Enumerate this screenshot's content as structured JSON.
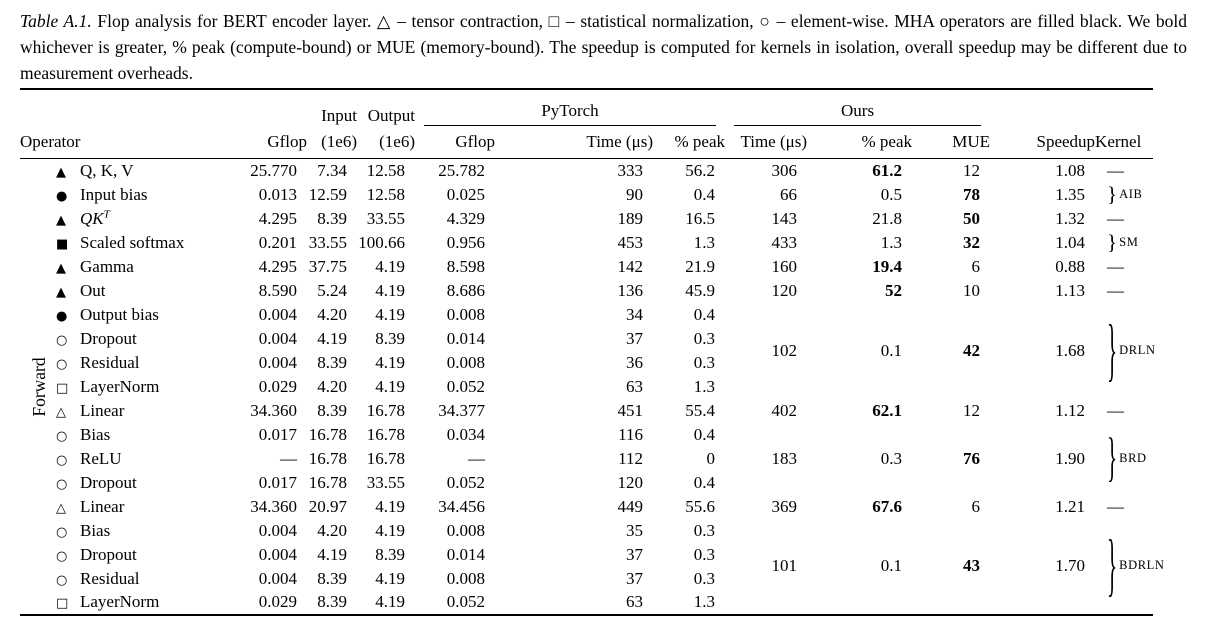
{
  "caption": {
    "label": "Table A.1.",
    "text": "Flop analysis for BERT encoder layer.  △ – tensor contraction, □ – statistical normalization, ○ – element-wise.  MHA operators are filled black.  We bold whichever is greater, % peak (compute-bound) or MUE (memory-bound).  The speedup is computed for kernels in isolation, overall speedup may be different due to measurement overheads."
  },
  "table": {
    "side_label": "Forward",
    "group_headers": {
      "input": "Input",
      "output": "Output",
      "pytorch": "PyTorch",
      "ours": "Ours"
    },
    "column_headers": {
      "operator": "Operator",
      "gflop": "Gflop",
      "input_1e6": "(1e6)",
      "output_1e6": "(1e6)",
      "pt_gflop": "Gflop",
      "pt_time": "Time (μs)",
      "pt_peak": "% peak",
      "ours_time": "Time (μs)",
      "ours_peak": "% peak",
      "mue": "MUE",
      "speedup": "Speedup",
      "kernel": "Kernel"
    },
    "icon_glyphs": {
      "triangle-filled": "▲",
      "circle-filled": "●",
      "square-filled": "■",
      "circle-open": "○",
      "square-open": "□",
      "triangle-open": "△"
    },
    "rows": [
      {
        "icon": "triangle-filled",
        "operator": "Q, K, V",
        "gflop": "25.770",
        "input": "7.34",
        "output": "12.58",
        "pt_gflop": "25.782",
        "pt_time": "333",
        "pt_peak": "56.2",
        "ours": {
          "span": 1,
          "time": "306",
          "peak": "61.2",
          "peak_bold": true,
          "mue": "12",
          "mue_bold": false,
          "speedup": "1.08",
          "kernel_type": "dash",
          "kernel_label": "—"
        }
      },
      {
        "icon": "circle-filled",
        "operator": "Input bias",
        "gflop": "0.013",
        "input": "12.59",
        "output": "12.58",
        "pt_gflop": "0.025",
        "pt_time": "90",
        "pt_peak": "0.4",
        "ours": {
          "span": 1,
          "time": "66",
          "peak": "0.5",
          "peak_bold": false,
          "mue": "78",
          "mue_bold": true,
          "speedup": "1.35",
          "kernel_type": "brace",
          "kernel_label": "AIB"
        }
      },
      {
        "icon": "triangle-filled",
        "operator": "QK",
        "operator_sup": "T",
        "gflop": "4.295",
        "input": "8.39",
        "output": "33.55",
        "pt_gflop": "4.329",
        "pt_time": "189",
        "pt_peak": "16.5",
        "ours": {
          "span": 1,
          "time": "143",
          "peak": "21.8",
          "peak_bold": false,
          "mue": "50",
          "mue_bold": true,
          "speedup": "1.32",
          "kernel_type": "dash",
          "kernel_label": "—"
        }
      },
      {
        "icon": "square-filled",
        "operator": "Scaled softmax",
        "gflop": "0.201",
        "input": "33.55",
        "output": "100.66",
        "pt_gflop": "0.956",
        "pt_time": "453",
        "pt_peak": "1.3",
        "ours": {
          "span": 1,
          "time": "433",
          "peak": "1.3",
          "peak_bold": false,
          "mue": "32",
          "mue_bold": true,
          "speedup": "1.04",
          "kernel_type": "brace",
          "kernel_label": "SM"
        }
      },
      {
        "icon": "triangle-filled",
        "operator": "Gamma",
        "gflop": "4.295",
        "input": "37.75",
        "output": "4.19",
        "pt_gflop": "8.598",
        "pt_time": "142",
        "pt_peak": "21.9",
        "ours": {
          "span": 1,
          "time": "160",
          "peak": "19.4",
          "peak_bold": true,
          "mue": "6",
          "mue_bold": false,
          "speedup": "0.88",
          "kernel_type": "dash",
          "kernel_label": "—"
        }
      },
      {
        "icon": "triangle-filled",
        "operator": "Out",
        "gflop": "8.590",
        "input": "5.24",
        "output": "4.19",
        "pt_gflop": "8.686",
        "pt_time": "136",
        "pt_peak": "45.9",
        "ours": {
          "span": 1,
          "time": "120",
          "peak": "52",
          "peak_bold": true,
          "mue": "10",
          "mue_bold": false,
          "speedup": "1.13",
          "kernel_type": "dash",
          "kernel_label": "—"
        }
      },
      {
        "icon": "circle-filled",
        "operator": "Output bias",
        "gflop": "0.004",
        "input": "4.20",
        "output": "4.19",
        "pt_gflop": "0.008",
        "pt_time": "34",
        "pt_peak": "0.4",
        "ours": {
          "span": 4,
          "time": "102",
          "peak": "0.1",
          "peak_bold": false,
          "mue": "42",
          "mue_bold": true,
          "speedup": "1.68",
          "kernel_type": "brace",
          "kernel_label": "DRLN"
        }
      },
      {
        "icon": "circle-open",
        "operator": "Dropout",
        "gflop": "0.004",
        "input": "4.19",
        "output": "8.39",
        "pt_gflop": "0.014",
        "pt_time": "37",
        "pt_peak": "0.3"
      },
      {
        "icon": "circle-open",
        "operator": "Residual",
        "gflop": "0.004",
        "input": "8.39",
        "output": "4.19",
        "pt_gflop": "0.008",
        "pt_time": "36",
        "pt_peak": "0.3"
      },
      {
        "icon": "square-open",
        "operator": "LayerNorm",
        "gflop": "0.029",
        "input": "4.20",
        "output": "4.19",
        "pt_gflop": "0.052",
        "pt_time": "63",
        "pt_peak": "1.3"
      },
      {
        "icon": "triangle-open",
        "operator": "Linear",
        "gflop": "34.360",
        "input": "8.39",
        "output": "16.78",
        "pt_gflop": "34.377",
        "pt_time": "451",
        "pt_peak": "55.4",
        "ours": {
          "span": 1,
          "time": "402",
          "peak": "62.1",
          "peak_bold": true,
          "mue": "12",
          "mue_bold": false,
          "speedup": "1.12",
          "kernel_type": "dash",
          "kernel_label": "—"
        }
      },
      {
        "icon": "circle-open",
        "operator": "Bias",
        "gflop": "0.017",
        "input": "16.78",
        "output": "16.78",
        "pt_gflop": "0.034",
        "pt_time": "116",
        "pt_peak": "0.4",
        "ours": {
          "span": 3,
          "time": "183",
          "peak": "0.3",
          "peak_bold": false,
          "mue": "76",
          "mue_bold": true,
          "speedup": "1.90",
          "kernel_type": "brace",
          "kernel_label": "BRD"
        }
      },
      {
        "icon": "circle-open",
        "operator": "ReLU",
        "gflop": "—",
        "input": "16.78",
        "output": "16.78",
        "pt_gflop": "—",
        "pt_time": "112",
        "pt_peak": "0"
      },
      {
        "icon": "circle-open",
        "operator": "Dropout",
        "gflop": "0.017",
        "input": "16.78",
        "output": "33.55",
        "pt_gflop": "0.052",
        "pt_time": "120",
        "pt_peak": "0.4"
      },
      {
        "icon": "triangle-open",
        "operator": "Linear",
        "gflop": "34.360",
        "input": "20.97",
        "output": "4.19",
        "pt_gflop": "34.456",
        "pt_time": "449",
        "pt_peak": "55.6",
        "ours": {
          "span": 1,
          "time": "369",
          "peak": "67.6",
          "peak_bold": true,
          "mue": "6",
          "mue_bold": false,
          "speedup": "1.21",
          "kernel_type": "dash",
          "kernel_label": "—"
        }
      },
      {
        "icon": "circle-open",
        "operator": "Bias",
        "gflop": "0.004",
        "input": "4.20",
        "output": "4.19",
        "pt_gflop": "0.008",
        "pt_time": "35",
        "pt_peak": "0.3",
        "ours": {
          "span": 4,
          "time": "101",
          "peak": "0.1",
          "peak_bold": false,
          "mue": "43",
          "mue_bold": true,
          "speedup": "1.70",
          "kernel_type": "brace",
          "kernel_label": "BDRLN"
        }
      },
      {
        "icon": "circle-open",
        "operator": "Dropout",
        "gflop": "0.004",
        "input": "4.19",
        "output": "8.39",
        "pt_gflop": "0.014",
        "pt_time": "37",
        "pt_peak": "0.3"
      },
      {
        "icon": "circle-open",
        "operator": "Residual",
        "gflop": "0.004",
        "input": "8.39",
        "output": "4.19",
        "pt_gflop": "0.008",
        "pt_time": "37",
        "pt_peak": "0.3"
      },
      {
        "icon": "square-open",
        "operator": "LayerNorm",
        "gflop": "0.029",
        "input": "8.39",
        "output": "4.19",
        "pt_gflop": "0.052",
        "pt_time": "63",
        "pt_peak": "1.3"
      }
    ]
  }
}
